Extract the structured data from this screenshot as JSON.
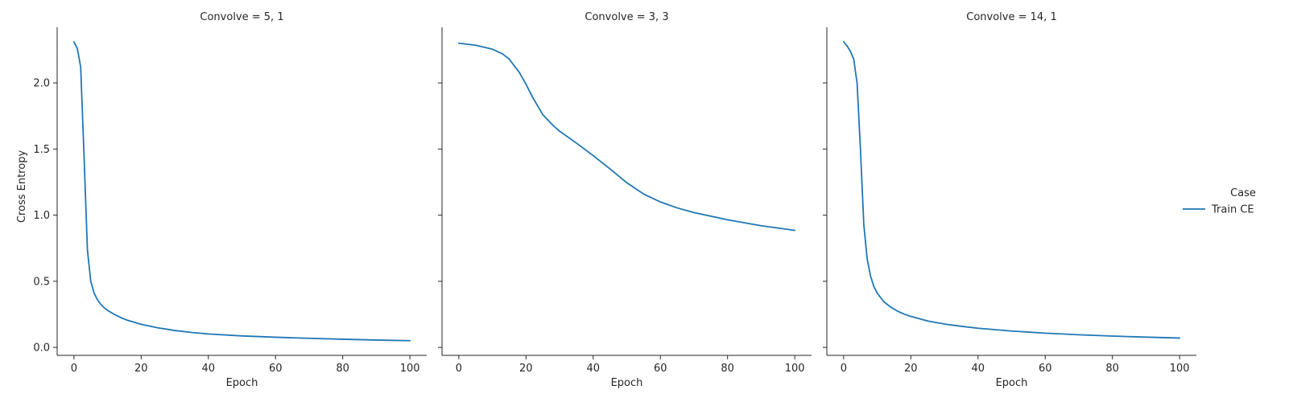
{
  "chart_data": {
    "type": "line",
    "ylabel": "Cross Entropy",
    "xlabel": "Epoch",
    "xlim": [
      -5,
      105
    ],
    "ylim": [
      -0.06,
      2.42
    ],
    "xticks": [
      0,
      20,
      40,
      60,
      80,
      100
    ],
    "yticks": [
      0.0,
      0.5,
      1.0,
      1.5,
      2.0
    ],
    "grid": false,
    "legend": {
      "title": "Case",
      "placement": "right",
      "entries": [
        {
          "name": "Train CE",
          "color": "#1f77b4"
        }
      ]
    },
    "panels": [
      {
        "title": "Convolve = 5, 1",
        "series": [
          {
            "name": "Train CE",
            "color": "#1f77b4",
            "x": [
              0,
              1,
              2,
              3,
              4,
              5,
              6,
              7,
              8,
              9,
              10,
              12,
              14,
              16,
              18,
              20,
              25,
              30,
              35,
              40,
              50,
              60,
              70,
              80,
              90,
              100
            ],
            "y": [
              2.31,
              2.26,
              2.12,
              1.45,
              0.74,
              0.5,
              0.41,
              0.36,
              0.325,
              0.3,
              0.28,
              0.25,
              0.225,
              0.205,
              0.19,
              0.175,
              0.148,
              0.128,
              0.113,
              0.102,
              0.087,
              0.077,
              0.069,
              0.062,
              0.056,
              0.051
            ]
          }
        ]
      },
      {
        "title": "Convolve = 3, 3",
        "series": [
          {
            "name": "Train CE",
            "color": "#1f77b4",
            "x": [
              0,
              5,
              10,
              13,
              15,
              18,
              20,
              22,
              25,
              28,
              30,
              35,
              40,
              45,
              50,
              55,
              60,
              65,
              70,
              80,
              90,
              100
            ],
            "y": [
              2.3,
              2.285,
              2.255,
              2.22,
              2.18,
              2.08,
              1.99,
              1.89,
              1.76,
              1.68,
              1.635,
              1.545,
              1.45,
              1.35,
              1.245,
              1.16,
              1.1,
              1.055,
              1.02,
              0.965,
              0.92,
              0.885
            ]
          }
        ]
      },
      {
        "title": "Convolve = 14, 1",
        "series": [
          {
            "name": "Train CE",
            "color": "#1f77b4",
            "x": [
              0,
              1,
              2,
              3,
              4,
              5,
              6,
              7,
              8,
              9,
              10,
              12,
              14,
              16,
              18,
              20,
              25,
              30,
              35,
              40,
              50,
              60,
              70,
              80,
              90,
              100
            ],
            "y": [
              2.31,
              2.28,
              2.24,
              2.18,
              2.0,
              1.5,
              0.93,
              0.67,
              0.54,
              0.46,
              0.41,
              0.345,
              0.305,
              0.275,
              0.252,
              0.235,
              0.2,
              0.177,
              0.16,
              0.145,
              0.124,
              0.108,
              0.096,
              0.086,
              0.078,
              0.071
            ]
          }
        ]
      }
    ]
  }
}
